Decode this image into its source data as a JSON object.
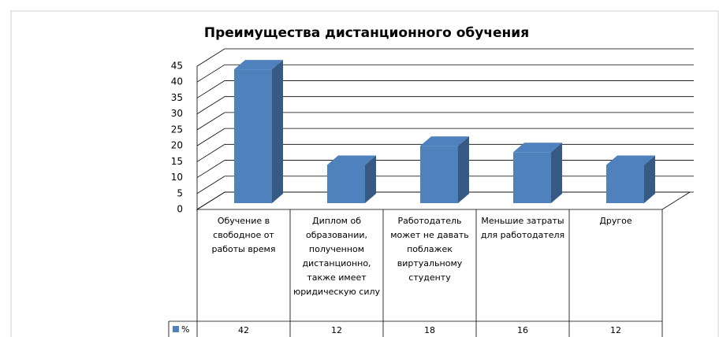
{
  "chart_data": {
    "type": "bar3d",
    "title": "Преимущества дистанционного  обучения",
    "categories": [
      "Обучение в свободное от работы время",
      "Диплом об образовании, полученном дистанционно, также имеет юридическую силу",
      "Работодатель может не давать поблажек виртуальному студенту",
      "Меньшие затраты для работодателя",
      "Другое"
    ],
    "series": [
      {
        "name": "%",
        "color": "#4f81bd",
        "values": [
          42,
          12,
          18,
          16,
          12
        ]
      }
    ],
    "ylim": [
      0,
      45
    ],
    "yticks": [
      0,
      5,
      10,
      15,
      20,
      25,
      30,
      35,
      40,
      45
    ],
    "grid": true,
    "data_table": true
  }
}
